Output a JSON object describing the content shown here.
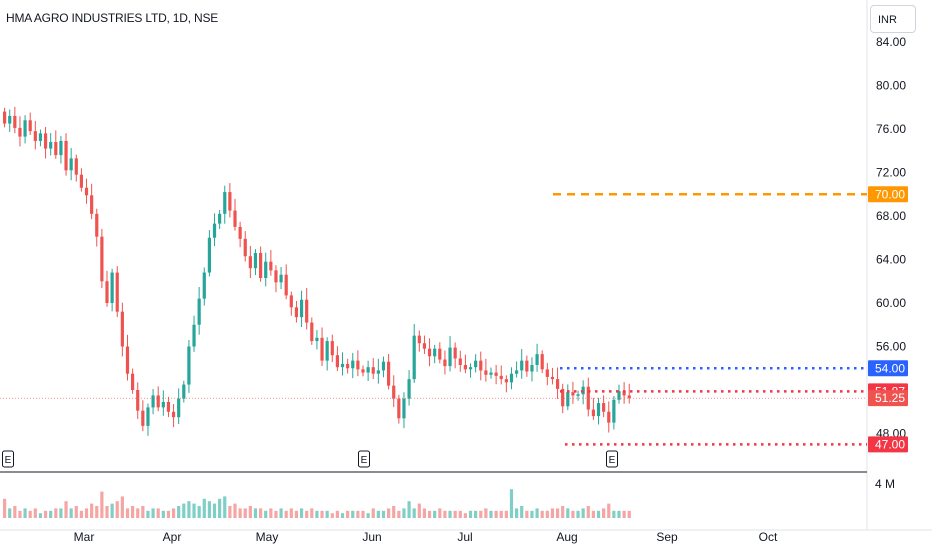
{
  "header": {
    "title": "HMA AGRO INDUSTRIES LTD, 1D, NSE",
    "currency": "INR"
  },
  "chart_data": {
    "type": "candlestick",
    "price_axis": {
      "ticks": [
        "84.00",
        "80.00",
        "76.00",
        "72.00",
        "68.00",
        "64.00",
        "60.00",
        "56.00",
        "48.00"
      ],
      "ylim": [
        45.5,
        86
      ]
    },
    "time_axis": {
      "ticks": [
        "Mar",
        "Apr",
        "May",
        "Jun",
        "Jul",
        "Aug",
        "Sep",
        "Oct"
      ]
    },
    "volume_axis": {
      "tick": "4 M"
    },
    "price_labels": [
      {
        "value": 70.0,
        "text": "70.00",
        "color": "#ff9800"
      },
      {
        "value": 54.0,
        "text": "54.00",
        "color": "#2962ff"
      },
      {
        "value": 51.87,
        "text": "51.87",
        "color": "#f23645"
      },
      {
        "value": 51.25,
        "text": "51.25",
        "color": "#ef5350"
      },
      {
        "value": 47.0,
        "text": "47.00",
        "color": "#f23645"
      }
    ],
    "horizontal_lines": [
      {
        "value": 70.0,
        "style": "dashed",
        "color": "#ff9800",
        "from": "Aug"
      },
      {
        "value": 54.0,
        "style": "dotted",
        "color": "#2962ff",
        "from": "Aug"
      },
      {
        "value": 51.87,
        "style": "dotted",
        "color": "#f23645",
        "from": "Aug"
      },
      {
        "value": 47.0,
        "style": "dotted",
        "color": "#f23645",
        "from": "Aug"
      }
    ],
    "last_price": 51.25,
    "earnings_markers": [
      "E",
      "E",
      "E"
    ],
    "colors": {
      "up": "#26a69a",
      "down": "#ef5350",
      "up_volume": "#7fcfc6",
      "down_volume": "#f5a6a4"
    },
    "candles_close": [
      76.5,
      77.2,
      76.1,
      75.3,
      76.8,
      75.8,
      74.9,
      75.6,
      74.2,
      74.8,
      73.6,
      74.9,
      72.2,
      73.3,
      71.8,
      70.6,
      69.9,
      68.2,
      66.1,
      62.0,
      60.0,
      62.8,
      59.2,
      56.0,
      53.5,
      52.0,
      50.1,
      48.7,
      50.4,
      51.5,
      50.4,
      50.9,
      50.0,
      49.5,
      51.2,
      52.5,
      56.0,
      58.0,
      60.4,
      62.8,
      66.0,
      67.3,
      68.2,
      70.2,
      68.5,
      67.0,
      65.9,
      64.3,
      63.2,
      64.6,
      62.3,
      63.8,
      63.0,
      61.9,
      62.6,
      60.7,
      59.6,
      58.7,
      60.3,
      58.2,
      56.5,
      56.8,
      54.7,
      56.5,
      55.2,
      54.1,
      54.4,
      54.0,
      54.7,
      53.9,
      53.6,
      54.1,
      53.5,
      53.8,
      54.6,
      52.4,
      51.2,
      49.4,
      51.2,
      53.0,
      57.0,
      56.3,
      55.8,
      55.1,
      55.8,
      54.8,
      54.2,
      55.9,
      54.9,
      54.3,
      53.9,
      54.1,
      54.7,
      53.8,
      53.4,
      53.6,
      53.3,
      53.0,
      52.7,
      53.5,
      53.8,
      54.7,
      53.7,
      54.3,
      55.3,
      53.9,
      53.2,
      53.0,
      52.1,
      50.5,
      51.8,
      51.5,
      51.6,
      52.3,
      50.2,
      49.6,
      50.8,
      50.0,
      49.0,
      51.1,
      51.9,
      51.5,
      51.25
    ],
    "volume_level": [
      0.4,
      0.2,
      0.25,
      0.15,
      0.2,
      0.15,
      0.2,
      0.1,
      0.15,
      0.15,
      0.2,
      0.2,
      0.35,
      0.2,
      0.25,
      0.15,
      0.2,
      0.3,
      0.25,
      0.55,
      0.25,
      0.3,
      0.35,
      0.45,
      0.2,
      0.25,
      0.2,
      0.25,
      0.15,
      0.2,
      0.2,
      0.15,
      0.15,
      0.2,
      0.25,
      0.3,
      0.35,
      0.3,
      0.25,
      0.4,
      0.35,
      0.3,
      0.4,
      0.45,
      0.25,
      0.3,
      0.2,
      0.2,
      0.25,
      0.2,
      0.2,
      0.15,
      0.2,
      0.15,
      0.2,
      0.15,
      0.2,
      0.15,
      0.2,
      0.15,
      0.2,
      0.15,
      0.15,
      0.15,
      0.1,
      0.15,
      0.1,
      0.15,
      0.15,
      0.15,
      0.15,
      0.1,
      0.2,
      0.15,
      0.15,
      0.2,
      0.25,
      0.15,
      0.2,
      0.35,
      0.2,
      0.3,
      0.2,
      0.15,
      0.15,
      0.2,
      0.15,
      0.15,
      0.15,
      0.15,
      0.1,
      0.15,
      0.15,
      0.15,
      0.2,
      0.15,
      0.15,
      0.15,
      0.15,
      0.6,
      0.2,
      0.25,
      0.15,
      0.15,
      0.2,
      0.15,
      0.15,
      0.2,
      0.2,
      0.25,
      0.2,
      0.15,
      0.15,
      0.2,
      0.25,
      0.15,
      0.15,
      0.2,
      0.3,
      0.15,
      0.15,
      0.15,
      0.15
    ]
  }
}
